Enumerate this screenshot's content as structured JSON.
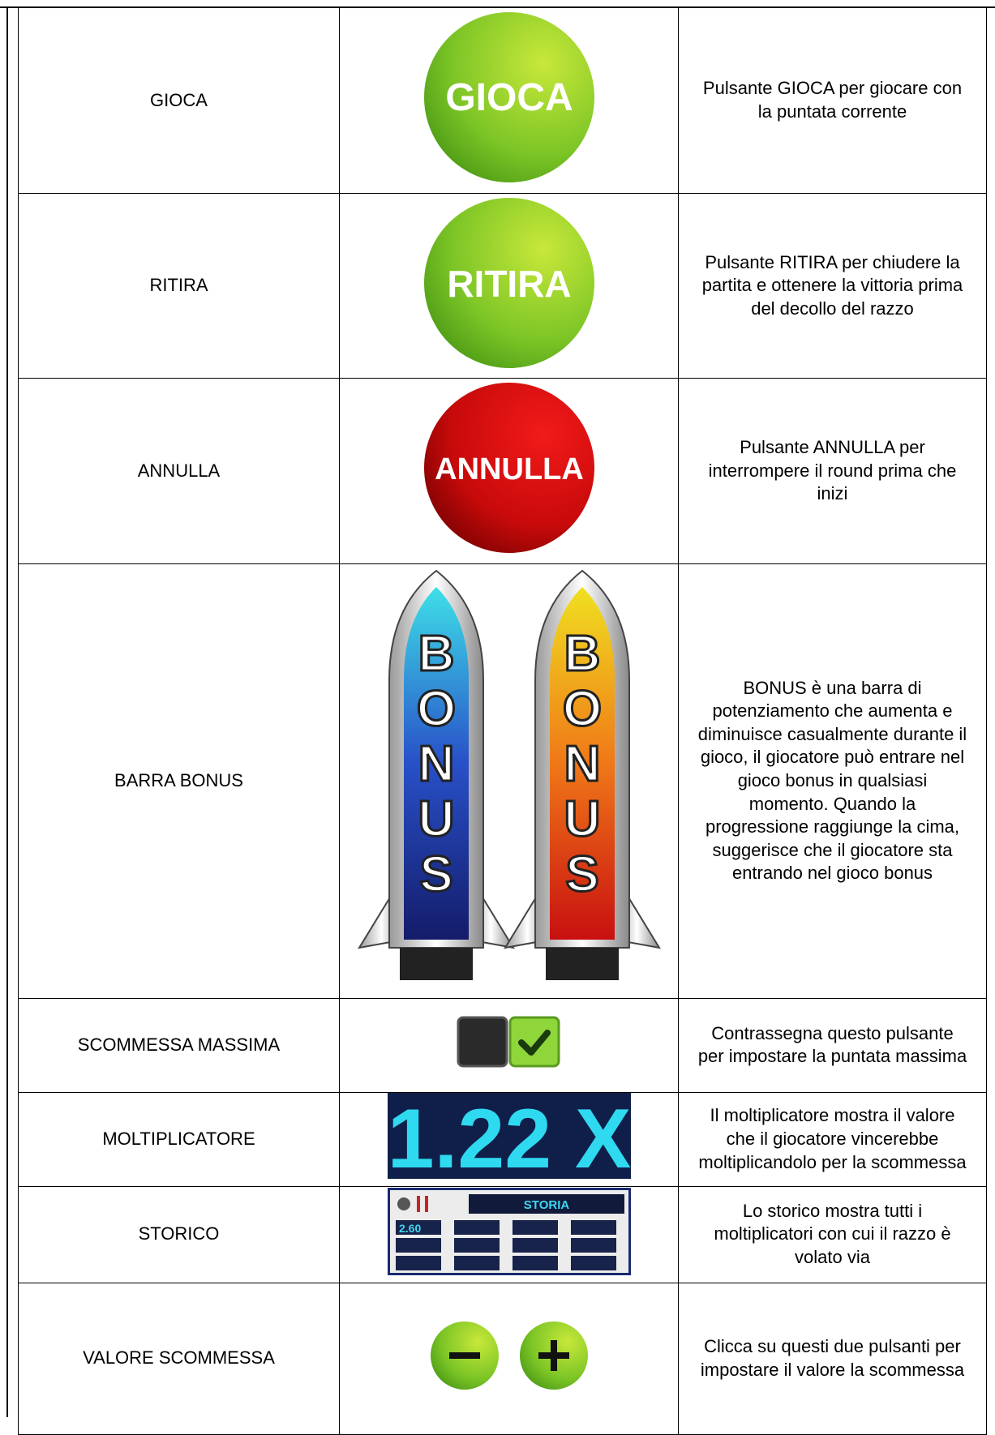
{
  "table": {
    "rows": [
      {
        "name": "GIOCA",
        "icon_text": "GIOCA",
        "description": "Pulsante GIOCA per giocare con la puntata corrente"
      },
      {
        "name": "RITIRA",
        "icon_text": "RITIRA",
        "description": "Pulsante RITIRA per chiudere la partita e ottenere la vittoria prima del decollo del razzo"
      },
      {
        "name": "ANNULLA",
        "icon_text": "ANNULLA",
        "description": "Pulsante ANNULLA per interrompere il round prima che inizi"
      },
      {
        "name": "BARRA BONUS",
        "icon_letters": [
          "B",
          "O",
          "N",
          "U",
          "S"
        ],
        "description": "BONUS è una barra di potenziamento che aumenta e diminuisce casualmente durante il gioco, il giocatore può entrare nel gioco bonus in qualsiasi momento. Quando la progressione raggiunge la cima, suggerisce che il giocatore sta entrando nel gioco bonus"
      },
      {
        "name": "SCOMMESSA MASSIMA",
        "description": "Contrassegna questo pulsante per impostare la puntata massima"
      },
      {
        "name": "MOLTIPLICATORE",
        "icon_text": "1.22 X",
        "description": "Il moltiplicatore mostra il valore che il giocatore vincerebbe moltiplicandolo per la scommessa"
      },
      {
        "name": "STORICO",
        "icon_text": "STORIA",
        "icon_value": "2.60",
        "description": "Lo storico mostra tutti i moltiplicatori con cui il razzo è volato via"
      },
      {
        "name": "VALORE SCOMMESSA",
        "description": "Clicca su questi due pulsanti per impostare il valore la scommessa"
      }
    ]
  }
}
